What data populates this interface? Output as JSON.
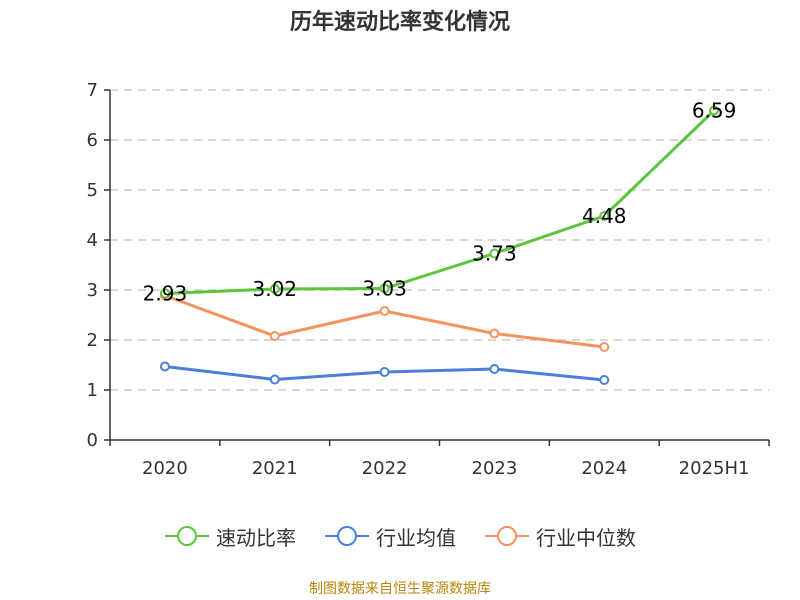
{
  "title": "历年速动比率变化情况",
  "source": "制图数据来自恒生聚源数据库",
  "colors": {
    "quick_ratio": "#5cc53a",
    "industry_mean": "#4c7fd6",
    "industry_median": "#f5925e",
    "grid": "#cccccc",
    "axis": "#333333"
  },
  "chart_data": {
    "type": "line",
    "title": "历年速动比率变化情况",
    "categories": [
      "2020",
      "2021",
      "2022",
      "2023",
      "2024",
      "2025H1"
    ],
    "ylim": [
      0,
      7
    ],
    "yticks": [
      "0",
      "1",
      "2",
      "3",
      "4",
      "5",
      "6",
      "7"
    ],
    "grid": true,
    "legend_position": "bottom",
    "series": [
      {
        "name": "速动比率",
        "color": "#5cc53a",
        "values": [
          2.93,
          3.02,
          3.03,
          3.73,
          4.48,
          6.59
        ],
        "labels": [
          "2.93",
          "3.02",
          "3.03",
          "3.73",
          "4.48",
          "6.59"
        ]
      },
      {
        "name": "行业均值",
        "color": "#4c7fd6",
        "values": [
          1.47,
          1.21,
          1.36,
          1.42,
          1.2,
          null
        ]
      },
      {
        "name": "行业中位数",
        "color": "#f5925e",
        "values": [
          2.89,
          2.08,
          2.58,
          2.13,
          1.86,
          null
        ]
      }
    ]
  }
}
